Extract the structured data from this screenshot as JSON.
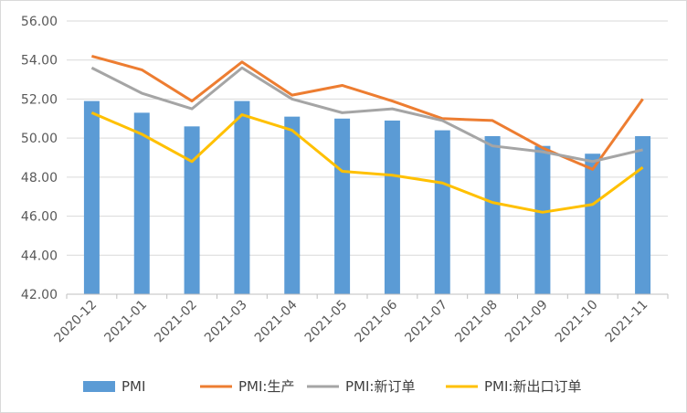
{
  "chart_data": {
    "type": "bar",
    "categories": [
      "2020-12",
      "2021-01",
      "2021-02",
      "2021-03",
      "2021-04",
      "2021-05",
      "2021-06",
      "2021-07",
      "2021-08",
      "2021-09",
      "2021-10",
      "2021-11"
    ],
    "series": [
      {
        "name": "PMI",
        "type": "bar",
        "color": "#5b9bd5",
        "values": [
          51.9,
          51.3,
          50.6,
          51.9,
          51.1,
          51.0,
          50.9,
          50.4,
          50.1,
          49.6,
          49.2,
          50.1
        ]
      },
      {
        "name": "PMI:生产",
        "type": "line",
        "color": "#ed7d31",
        "values": [
          54.2,
          53.5,
          51.9,
          53.9,
          52.2,
          52.7,
          51.9,
          51.0,
          50.9,
          49.5,
          48.4,
          52.0
        ]
      },
      {
        "name": "PMI:新订单",
        "type": "line",
        "color": "#a5a5a5",
        "values": [
          53.6,
          52.3,
          51.5,
          53.6,
          52.0,
          51.3,
          51.5,
          50.9,
          49.6,
          49.3,
          48.8,
          49.4
        ]
      },
      {
        "name": "PMI:新出口订单",
        "type": "line",
        "color": "#ffc000",
        "values": [
          51.3,
          50.2,
          48.8,
          51.2,
          50.4,
          48.3,
          48.1,
          47.7,
          46.7,
          46.2,
          46.6,
          48.5
        ]
      }
    ],
    "y_ticks": [
      "42.00",
      "44.00",
      "46.00",
      "48.00",
      "50.00",
      "52.00",
      "54.00",
      "56.00"
    ],
    "ylim": [
      42,
      56
    ],
    "grid": true,
    "legend_position": "bottom"
  }
}
